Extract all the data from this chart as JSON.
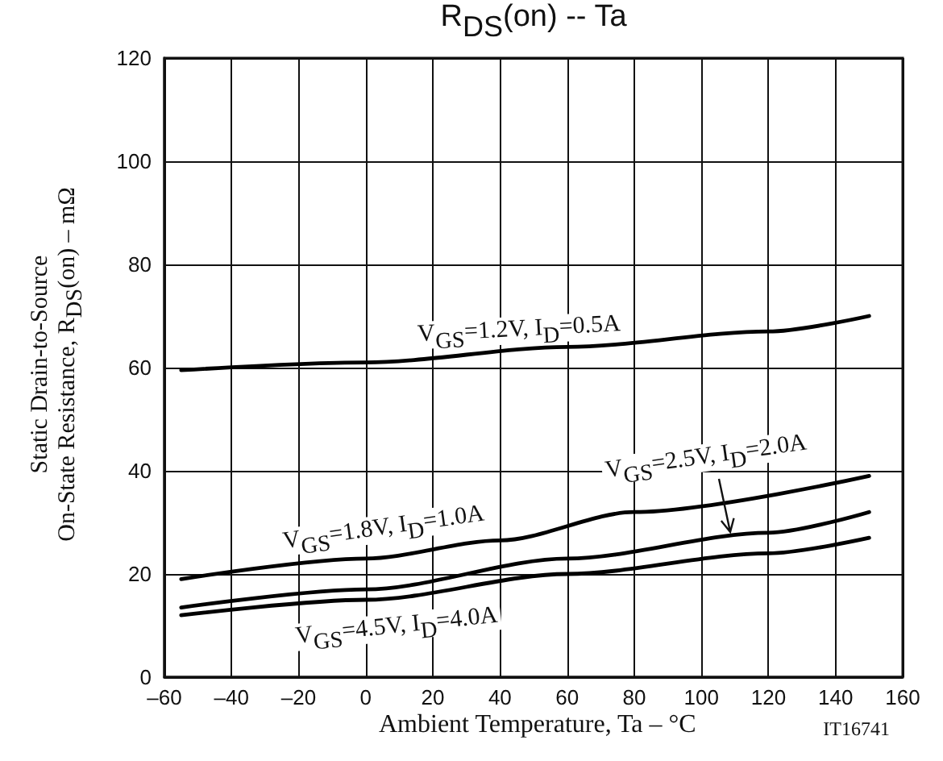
{
  "chart_data": {
    "type": "line",
    "title": "R$_{DS}$(on)  --  Ta",
    "xlabel": "Ambient Temperature, Ta  –  °C",
    "ylabel": "Static Drain-to-Source\nOn-State Resistance, R$_{DS}$(on)  –  mΩ",
    "xlim": [
      -60,
      160
    ],
    "xticks": [
      {
        "value": -60,
        "label": "–60"
      },
      {
        "value": -40,
        "label": "–40"
      },
      {
        "value": -20,
        "label": "–20"
      },
      0,
      20,
      40,
      60,
      80,
      100,
      120,
      140,
      160
    ],
    "ylim": [
      0,
      120
    ],
    "yticks": [
      0,
      20,
      40,
      60,
      80,
      100,
      120
    ],
    "grid": true,
    "marker": "none",
    "line_style": "solid",
    "series": [
      {
        "color": "#000000",
        "x": [
          -55,
          0,
          60,
          120,
          150
        ],
        "values": [
          59.5,
          61,
          64,
          67,
          70
        ]
      },
      {
        "color": "#000000",
        "x": [
          -55,
          0,
          40,
          80,
          150
        ],
        "values": [
          19,
          23,
          26.5,
          32,
          39
        ]
      },
      {
        "color": "#000000",
        "x": [
          -55,
          0,
          60,
          120,
          150
        ],
        "values": [
          13.5,
          17,
          23,
          28,
          32
        ]
      },
      {
        "color": "#000000",
        "x": [
          -55,
          0,
          60,
          120,
          150
        ],
        "values": [
          12,
          15,
          20,
          24,
          27
        ]
      }
    ],
    "annotations": [
      "V$_{GS}$=1.2V, I$_{D}$=0.5A",
      "V$_{GS}$=1.8V, I$_{D}$=1.0A",
      "V$_{GS}$=2.5V, I$_{D}$=2.0A",
      "V$_{GS}$=4.5V, I$_{D}$=4.0A",
      "IT16741"
    ]
  }
}
